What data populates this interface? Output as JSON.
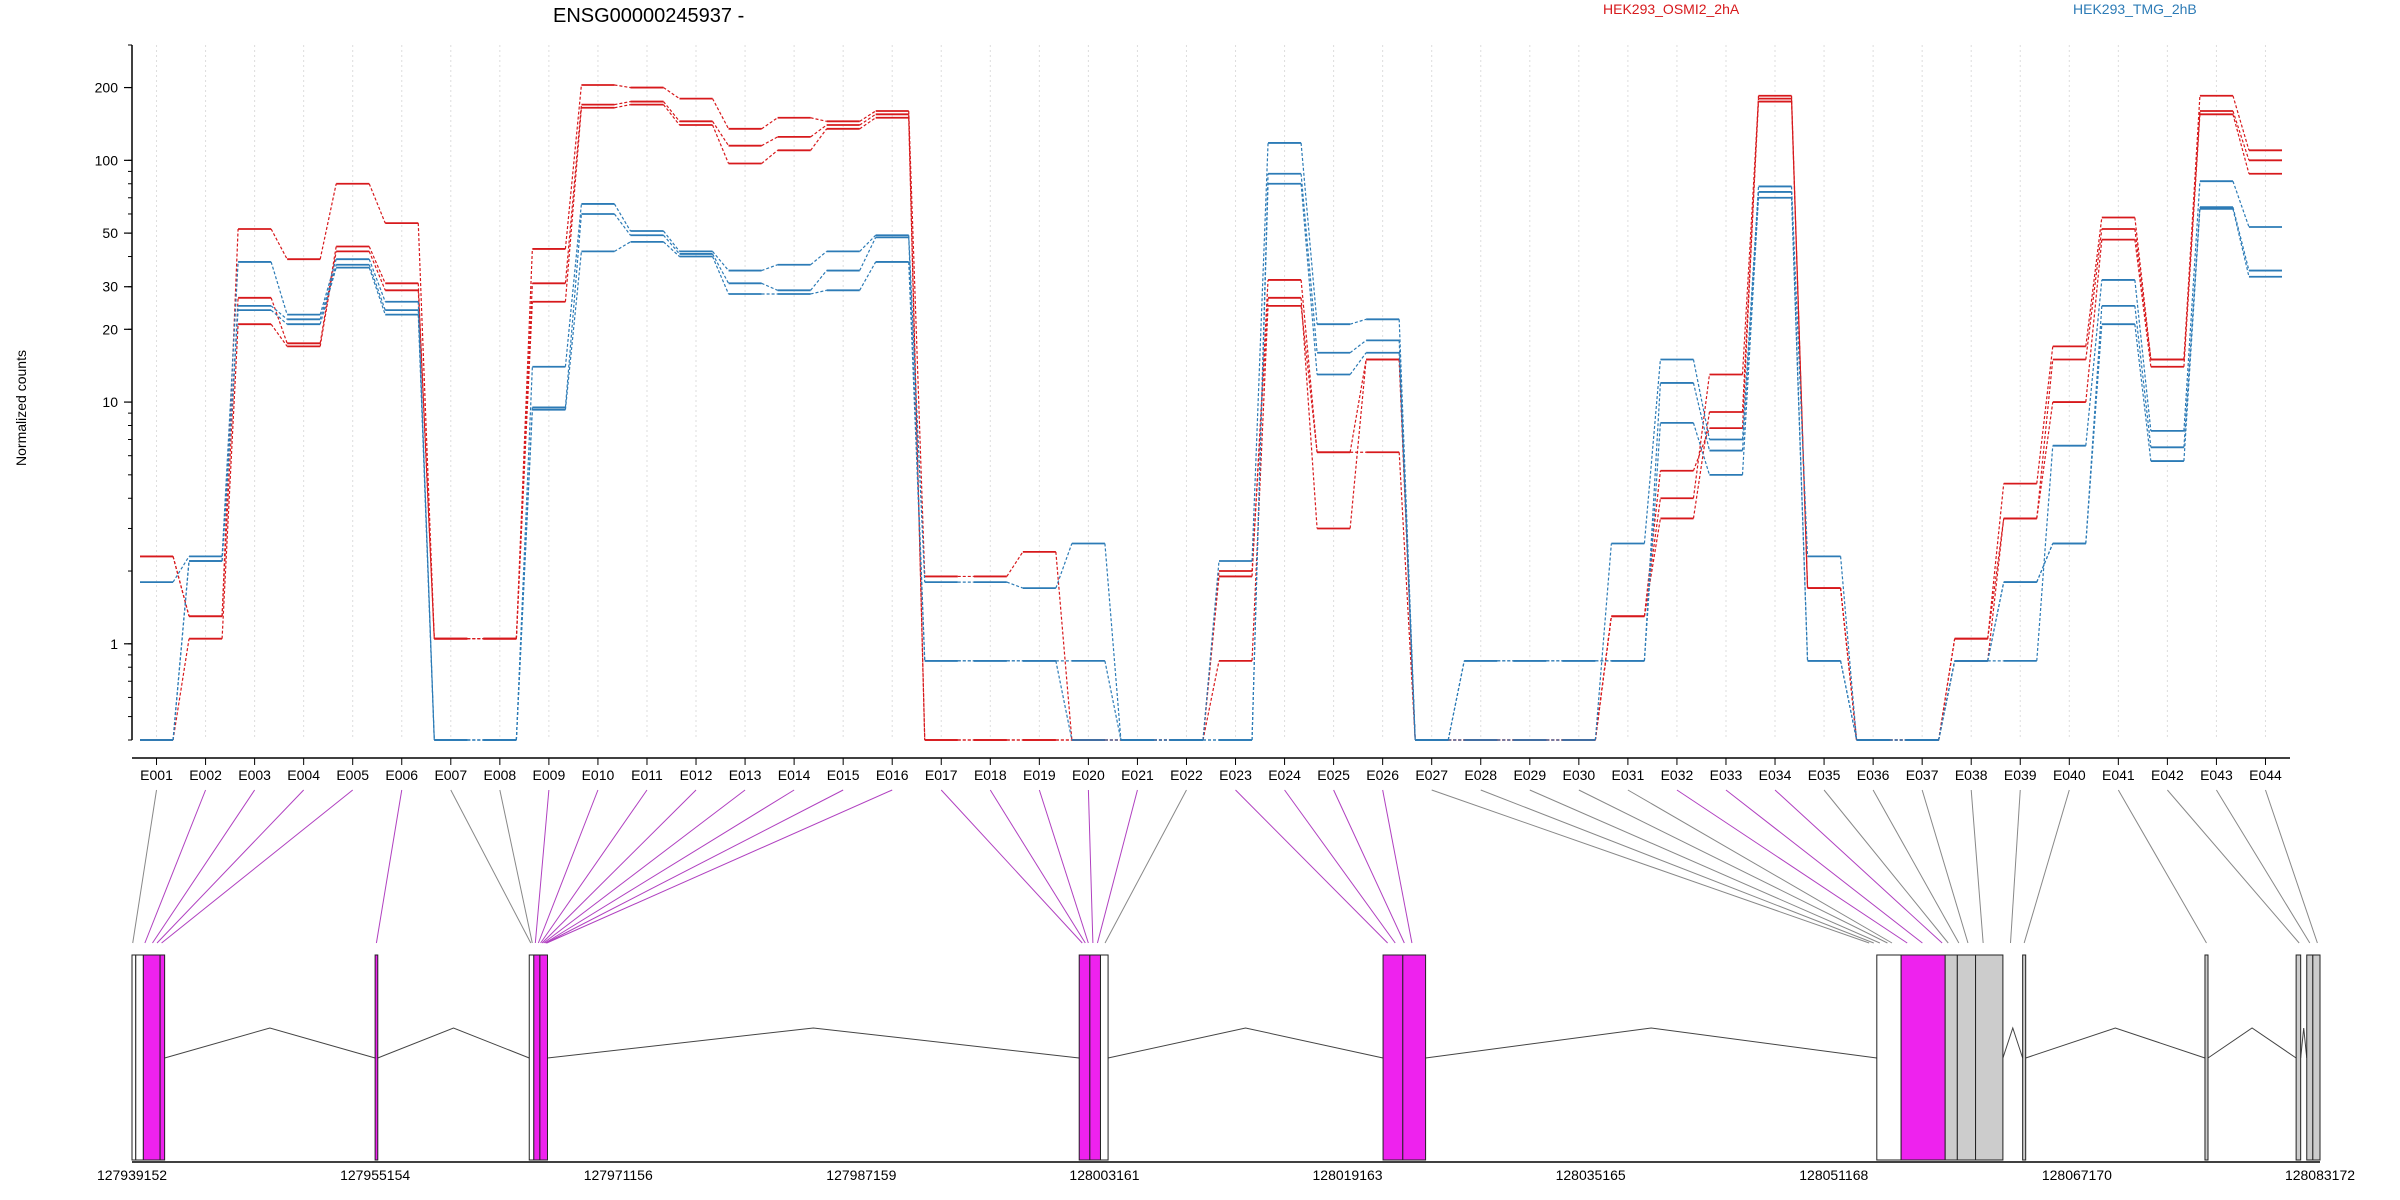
{
  "chart_data": {
    "type": "line",
    "title": "ENSG00000245937 -",
    "ylabel": "Normalized counts",
    "yscale": "log",
    "ylim": [
      0.4,
      300
    ],
    "yticks": [
      1,
      10,
      20,
      30,
      50,
      100,
      200
    ],
    "grid": "vertical dotted",
    "legend_position": "top",
    "series_colors": {
      "HEK293_OSMI2_2hA": "#d7191c",
      "HEK293_TMG_2hB": "#2c7bb6"
    },
    "exons": [
      "E001",
      "E002",
      "E003",
      "E004",
      "E005",
      "E006",
      "E007",
      "E008",
      "E009",
      "E010",
      "E011",
      "E012",
      "E013",
      "E014",
      "E015",
      "E016",
      "E017",
      "E018",
      "E019",
      "E020",
      "E021",
      "E022",
      "E023",
      "E024",
      "E025",
      "E026",
      "E027",
      "E028",
      "E029",
      "E030",
      "E031",
      "E032",
      "E033",
      "E034",
      "E035",
      "E036",
      "E037",
      "E038",
      "E039",
      "E040",
      "E041",
      "E042",
      "E043",
      "E044"
    ],
    "series": [
      {
        "name": "HEK293_OSMI2_2hA",
        "values": [
          2.3,
          1.3,
          52,
          39,
          80,
          55,
          1.05,
          1.05,
          43,
          205,
          200,
          180,
          135,
          150,
          145,
          160,
          1.9,
          1.9,
          2.4,
          0.4,
          0.4,
          0.4,
          1.9,
          32,
          6.2,
          6.2,
          0.4,
          0.4,
          0.4,
          0.4,
          1.3,
          5.2,
          7.8,
          185,
          1.7,
          0.4,
          0.4,
          1.05,
          4.6,
          17,
          58,
          15,
          185,
          110
        ]
      },
      {
        "name": "HEK293_OSMI2_2hA",
        "values": [
          2.3,
          1.3,
          27,
          17.5,
          44,
          31,
          1.05,
          1.05,
          31,
          170,
          175,
          145,
          115,
          125,
          140,
          155,
          0.4,
          0.4,
          0.4,
          0.4,
          0.4,
          0.4,
          2.0,
          27,
          3.0,
          15,
          0.4,
          0.4,
          0.4,
          0.4,
          1.3,
          4.0,
          13,
          180,
          1.7,
          0.4,
          0.4,
          1.05,
          3.3,
          15,
          52,
          15,
          160,
          100
        ]
      },
      {
        "name": "HEK293_OSMI2_2hA",
        "values": [
          0.4,
          1.05,
          21,
          17,
          42,
          29,
          1.05,
          1.05,
          26,
          165,
          170,
          140,
          97,
          110,
          135,
          150,
          0.4,
          0.4,
          0.4,
          0.4,
          0.4,
          0.4,
          0.85,
          25,
          6.2,
          15,
          0.4,
          0.4,
          0.4,
          0.4,
          1.3,
          3.3,
          9.1,
          175,
          1.7,
          0.4,
          0.4,
          0.85,
          3.3,
          10,
          47,
          14,
          155,
          88
        ]
      },
      {
        "name": "HEK293_TMG_2hB",
        "values": [
          1.8,
          2.3,
          38,
          23,
          39,
          26,
          0.4,
          0.4,
          14,
          66,
          51,
          42,
          35,
          37,
          42,
          49,
          1.8,
          1.8,
          1.7,
          2.6,
          0.4,
          0.4,
          2.2,
          118,
          21,
          22,
          0.4,
          0.4,
          0.4,
          0.4,
          2.6,
          15,
          7.0,
          78,
          2.3,
          0.4,
          0.4,
          0.85,
          0.85,
          6.6,
          32,
          7.6,
          82,
          53
        ]
      },
      {
        "name": "HEK293_TMG_2hB",
        "values": [
          0.4,
          2.2,
          25,
          22,
          37,
          24,
          0.4,
          0.4,
          9.5,
          60,
          49,
          41,
          31,
          29,
          35,
          48,
          0.85,
          0.85,
          0.85,
          0.85,
          0.4,
          0.4,
          0.4,
          88,
          16,
          18,
          0.4,
          0.85,
          0.85,
          0.85,
          0.85,
          12,
          6.3,
          74,
          0.85,
          0.4,
          0.4,
          0.85,
          1.8,
          2.6,
          25,
          6.5,
          64,
          35
        ]
      },
      {
        "name": "HEK293_TMG_2hB",
        "values": [
          0.4,
          2.2,
          24,
          21,
          36,
          23,
          0.4,
          0.4,
          9.3,
          42,
          46,
          40,
          28,
          28,
          29,
          38,
          0.85,
          0.85,
          0.85,
          0.4,
          0.4,
          0.4,
          0.4,
          80,
          13,
          16,
          0.4,
          0.85,
          0.85,
          0.85,
          0.85,
          8.2,
          5.0,
          70,
          0.85,
          0.4,
          0.4,
          0.85,
          1.8,
          2.6,
          21,
          5.7,
          63,
          33
        ]
      }
    ],
    "genomic_axis_ticks": [
      "127939152",
      "127955154",
      "127971156",
      "127987159",
      "128003161",
      "128019163",
      "128035165",
      "128051168",
      "128067170",
      "128083172"
    ],
    "track_exons": [
      {
        "start": 127939152,
        "end": 127939400,
        "fill": "#ffffff"
      },
      {
        "start": 127939400,
        "end": 127939900,
        "fill": "#ffffff"
      },
      {
        "start": 127939900,
        "end": 127941000,
        "fill": "#ee22ee"
      },
      {
        "start": 127941000,
        "end": 127941300,
        "fill": "#ee22ee"
      },
      {
        "start": 127955154,
        "end": 127955330,
        "fill": "#ee22ee"
      },
      {
        "start": 127965300,
        "end": 127965600,
        "fill": "#ffffff"
      },
      {
        "start": 127965600,
        "end": 127966000,
        "fill": "#ee22ee"
      },
      {
        "start": 127966000,
        "end": 127966500,
        "fill": "#ee22ee"
      },
      {
        "start": 128001500,
        "end": 128002200,
        "fill": "#ee22ee"
      },
      {
        "start": 128002200,
        "end": 128002900,
        "fill": "#ee22ee"
      },
      {
        "start": 128002900,
        "end": 128003400,
        "fill": "#ffffff"
      },
      {
        "start": 128021500,
        "end": 128022800,
        "fill": "#ee22ee"
      },
      {
        "start": 128022800,
        "end": 128024300,
        "fill": "#ee22ee"
      },
      {
        "start": 128054000,
        "end": 128055600,
        "fill": "#ffffff"
      },
      {
        "start": 128055600,
        "end": 128058500,
        "fill": "#ee22ee"
      },
      {
        "start": 128058500,
        "end": 128059300,
        "fill": "#cccccc"
      },
      {
        "start": 128059300,
        "end": 128060500,
        "fill": "#cccccc"
      },
      {
        "start": 128060500,
        "end": 128062300,
        "fill": "#cccccc"
      },
      {
        "start": 128063600,
        "end": 128063800,
        "fill": "#cccccc"
      },
      {
        "start": 128075600,
        "end": 128075800,
        "fill": "#cccccc"
      },
      {
        "start": 128081600,
        "end": 128081900,
        "fill": "#cccccc"
      },
      {
        "start": 128082300,
        "end": 128082700,
        "fill": "#cccccc"
      },
      {
        "start": 128082700,
        "end": 128083172,
        "fill": "#cccccc"
      }
    ],
    "exon_track_mapping": [
      127939200,
      127940000,
      127940500,
      127940800,
      127941100,
      127955240,
      127965400,
      127965500,
      127965700,
      127965900,
      127966050,
      127966150,
      127966250,
      127966350,
      127966400,
      127966450,
      128001700,
      128001900,
      128002100,
      128002400,
      128002700,
      128003200,
      128021800,
      128022300,
      128022900,
      128023400,
      128053500,
      128053800,
      128054200,
      128054700,
      128055000,
      128056000,
      128057000,
      128058300,
      128058700,
      128059400,
      128060000,
      128061000,
      128062800,
      128063700,
      128075700,
      128081800,
      128082500,
      128083000
    ]
  },
  "legend": [
    {
      "label": "HEK293_OSMI2_2hA",
      "color": "#d7191c"
    },
    {
      "label": "HEK293_TMG_2hB",
      "color": "#2c7bb6"
    }
  ]
}
